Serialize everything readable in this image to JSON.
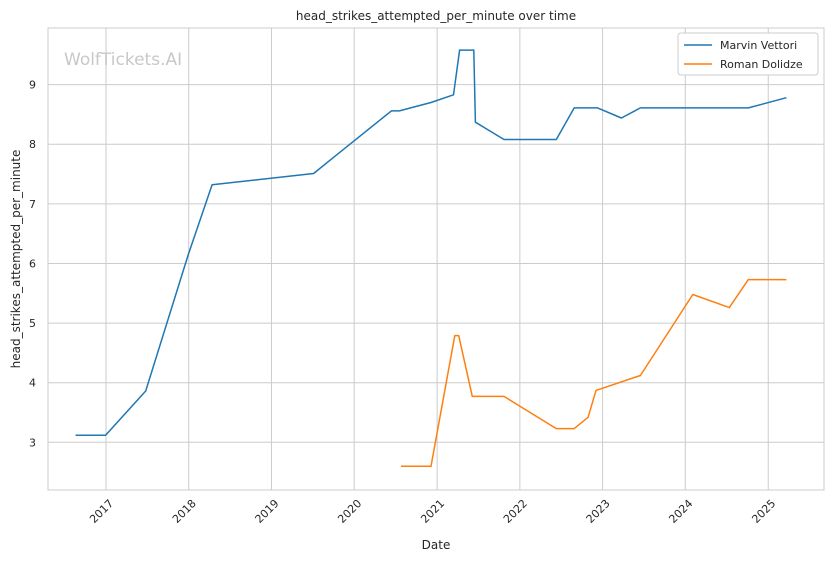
{
  "chart_data": {
    "type": "line",
    "title": "head_strikes_attempted_per_minute over time",
    "xlabel": "Date",
    "ylabel": "head_strikes_attempted_per_minute",
    "watermark": "WolfTickets.AI",
    "x_ticks": [
      "2017",
      "2018",
      "2019",
      "2020",
      "2021",
      "2022",
      "2023",
      "2024",
      "2025"
    ],
    "y_ticks": [
      3,
      4,
      5,
      6,
      7,
      8,
      9
    ],
    "xlim": [
      "2016-04-20",
      "2025-09-04"
    ],
    "ylim": [
      2.2,
      9.95
    ],
    "grid": true,
    "legend_position": "top-right",
    "series": [
      {
        "name": "Marvin Vettori",
        "color": "#1f77b4",
        "points": [
          [
            "2016-08-20",
            3.12
          ],
          [
            "2016-12-30",
            3.12
          ],
          [
            "2017-06-25",
            3.86
          ],
          [
            "2017-12-30",
            6.15
          ],
          [
            "2018-04-14",
            7.32
          ],
          [
            "2019-07-06",
            7.51
          ],
          [
            "2019-10-18",
            7.83
          ],
          [
            "2020-06-13",
            8.56
          ],
          [
            "2020-07-18",
            8.56
          ],
          [
            "2020-12-05",
            8.7
          ],
          [
            "2021-03-14",
            8.83
          ],
          [
            "2021-04-10",
            9.58
          ],
          [
            "2021-06-12",
            9.58
          ],
          [
            "2021-06-19",
            8.37
          ],
          [
            "2021-10-23",
            8.08
          ],
          [
            "2022-06-11",
            8.08
          ],
          [
            "2022-08-29",
            8.61
          ],
          [
            "2022-12-10",
            8.61
          ],
          [
            "2023-03-25",
            8.44
          ],
          [
            "2023-06-17",
            8.61
          ],
          [
            "2024-10-05",
            8.61
          ],
          [
            "2025-03-22",
            8.78
          ]
        ]
      },
      {
        "name": "Roman Dolidze",
        "color": "#ff7f0e",
        "points": [
          [
            "2020-07-25",
            2.6
          ],
          [
            "2020-12-05",
            2.6
          ],
          [
            "2021-03-20",
            4.79
          ],
          [
            "2021-04-06",
            4.79
          ],
          [
            "2021-06-05",
            3.77
          ],
          [
            "2021-10-23",
            3.77
          ],
          [
            "2022-06-11",
            3.23
          ],
          [
            "2022-08-29",
            3.23
          ],
          [
            "2022-10-29",
            3.42
          ],
          [
            "2022-12-03",
            3.87
          ],
          [
            "2023-06-17",
            4.12
          ],
          [
            "2024-02-03",
            5.48
          ],
          [
            "2024-07-13",
            5.26
          ],
          [
            "2024-10-05",
            5.73
          ],
          [
            "2025-03-22",
            5.73
          ]
        ]
      }
    ]
  }
}
